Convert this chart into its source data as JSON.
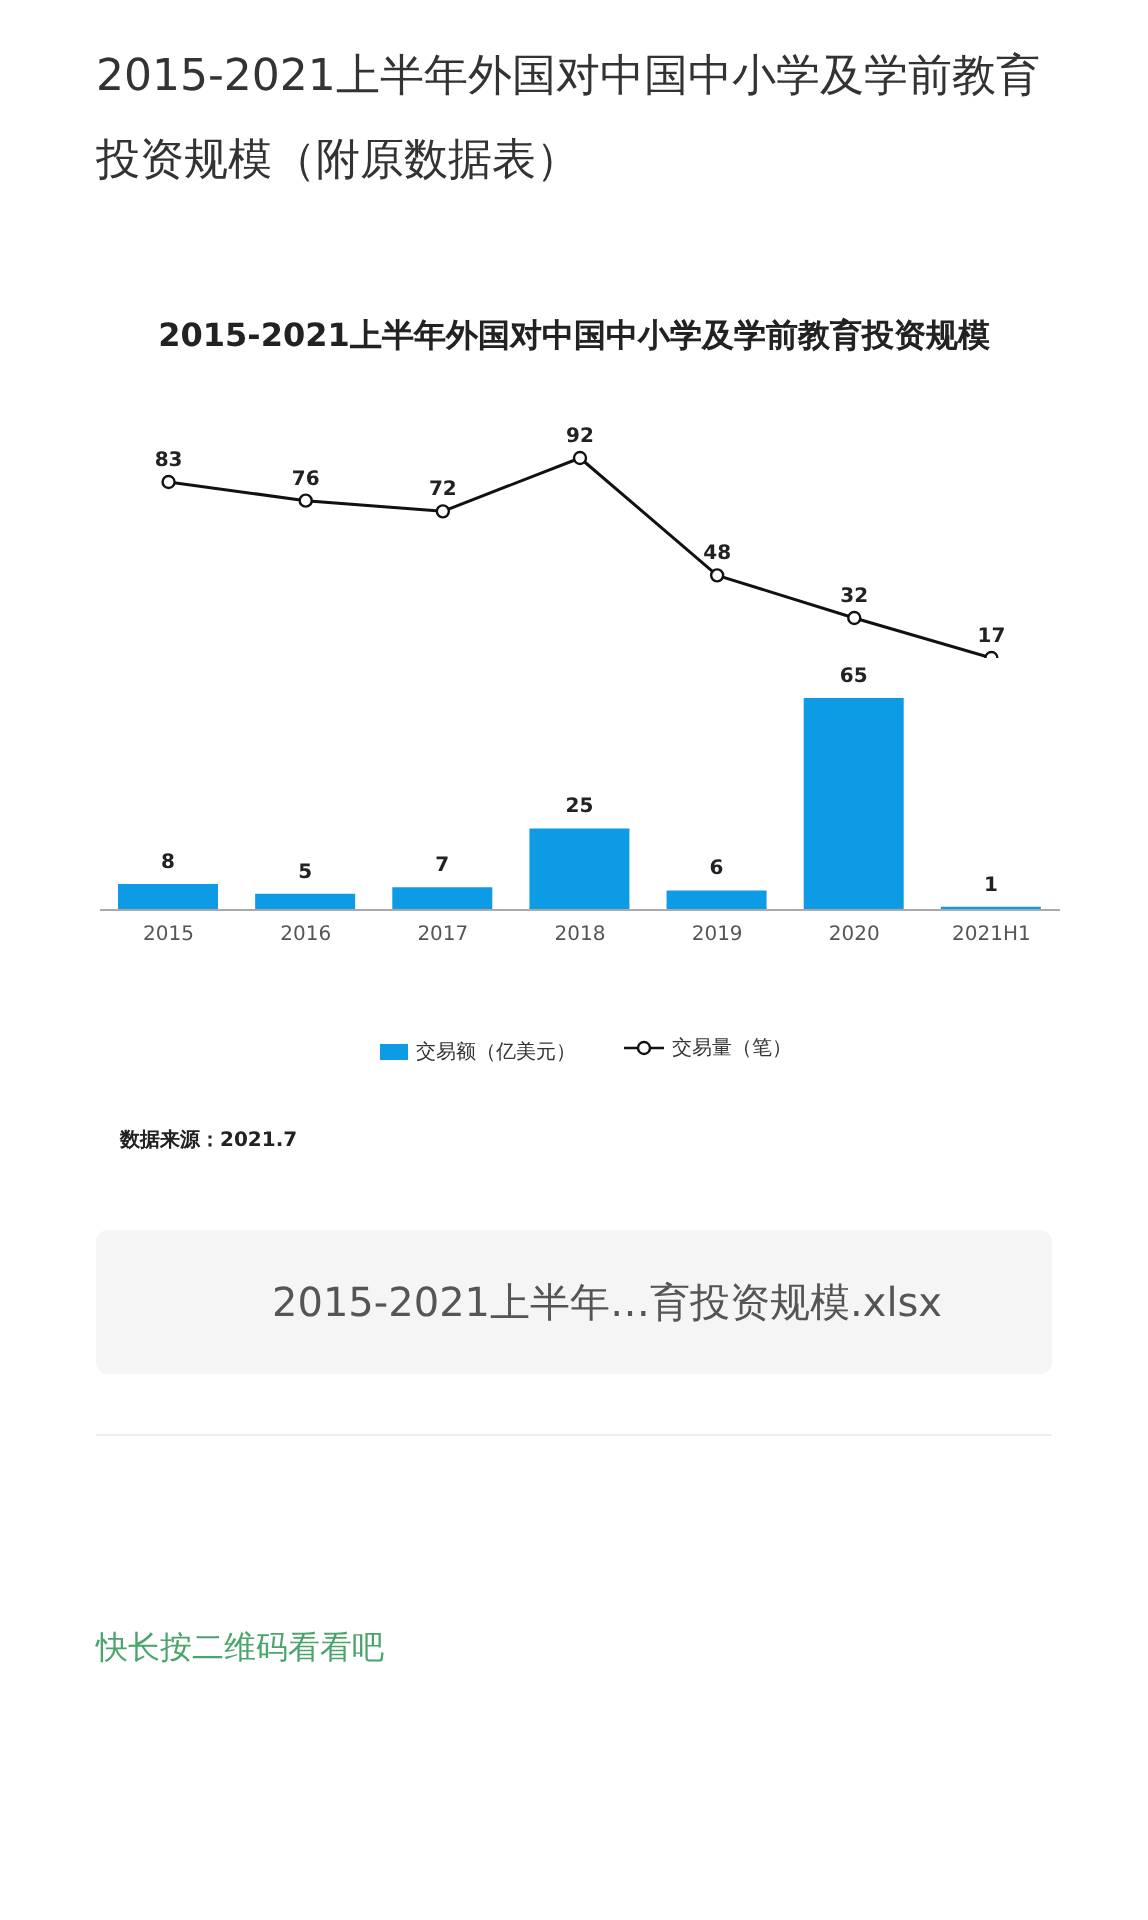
{
  "chart_data": [
    {
      "type": "line",
      "title": "2015-2021上半年外国对中国中小学及学前教育投资规模（附原数据表）",
      "subtitle": "2015-2021上半年外国对中国中小学及学前教育投资规模",
      "categories": [
        null,
        null,
        null,
        null,
        null,
        null,
        null
      ],
      "series": [
        {
          "name": "交易量（笔）",
          "color": "#111111",
          "values": [
            83,
            76,
            72,
            92,
            48,
            32,
            17
          ]
        }
      ],
      "marker": "circle",
      "tick_labels": false,
      "data_labels": true,
      "legend": "bottom"
    },
    {
      "type": "bar",
      "categories": [
        "2015",
        "2016",
        "2017",
        "2018",
        "2019",
        "2020",
        "2021H1"
      ],
      "series": [
        {
          "name": "交易额（亿美元）",
          "color": "#0e9be6",
          "values": [
            8,
            5,
            7,
            25,
            6,
            65,
            1
          ]
        }
      ],
      "tick_labels": "x",
      "data_labels": true,
      "legend": "bottom",
      "annotations": [
        "数据来源：2021.7",
        "2015-2021上半年…育投资规模.xlsx",
        "快长按二维码看看吧"
      ]
    }
  ]
}
